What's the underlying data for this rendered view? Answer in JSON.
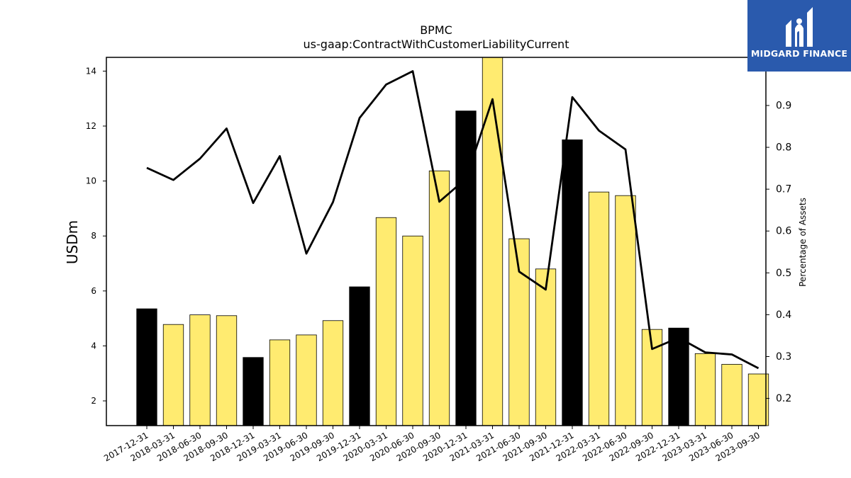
{
  "chart_data": {
    "type": "bar",
    "title": "BPMC",
    "subtitle": "us-gaap:ContractWithCustomerLiabilityCurrent",
    "ylabel": "USDm",
    "y2label": "Percentage of Assets",
    "ylim": [
      1.1,
      14.5
    ],
    "y2lim": [
      0.135,
      1.015
    ],
    "yticks": [
      2,
      4,
      6,
      8,
      10,
      12,
      14
    ],
    "y2ticks": [
      0.2,
      0.3,
      0.4,
      0.5,
      0.6,
      0.7,
      0.8,
      0.9
    ],
    "categories": [
      "2017-12-31",
      "2018-03-31",
      "2018-06-30",
      "2018-09-30",
      "2018-12-31",
      "2019-03-31",
      "2019-06-30",
      "2019-09-30",
      "2019-12-31",
      "2020-03-31",
      "2020-06-30",
      "2020-09-30",
      "2020-12-31",
      "2021-03-31",
      "2021-06-30",
      "2021-09-30",
      "2021-12-31",
      "2022-03-31",
      "2022-06-30",
      "2022-09-30",
      "2022-12-31",
      "2023-03-31",
      "2023-06-30",
      "2023-09-30"
    ],
    "series": [
      {
        "kind": "bar",
        "values": [
          5.35,
          4.78,
          5.13,
          5.1,
          3.58,
          4.22,
          4.4,
          4.92,
          6.15,
          8.67,
          8.0,
          10.37,
          12.55,
          14.7,
          7.9,
          6.8,
          11.5,
          9.6,
          9.47,
          4.6,
          4.65,
          3.72,
          3.33,
          2.98
        ],
        "colors": [
          "#000000",
          "#ffeb70",
          "#ffeb70",
          "#ffeb70",
          "#000000",
          "#ffeb70",
          "#ffeb70",
          "#ffeb70",
          "#000000",
          "#ffeb70",
          "#ffeb70",
          "#ffeb70",
          "#000000",
          "#ffeb70",
          "#ffeb70",
          "#ffeb70",
          "#000000",
          "#ffeb70",
          "#ffeb70",
          "#ffeb70",
          "#000000",
          "#ffeb70",
          "#ffeb70",
          "#ffeb70"
        ]
      },
      {
        "kind": "line",
        "axis": "right",
        "color": "#000000",
        "values": [
          0.751,
          0.722,
          0.773,
          0.845,
          0.667,
          0.779,
          0.546,
          0.669,
          0.87,
          0.95,
          0.982,
          0.67,
          0.725,
          0.915,
          0.503,
          0.46,
          0.92,
          0.84,
          0.795,
          0.318,
          0.345,
          0.31,
          0.305,
          0.272
        ]
      }
    ],
    "grid": false
  },
  "logo": {
    "text": "MIDGARD FINANCE",
    "color": "#2a5aad"
  }
}
